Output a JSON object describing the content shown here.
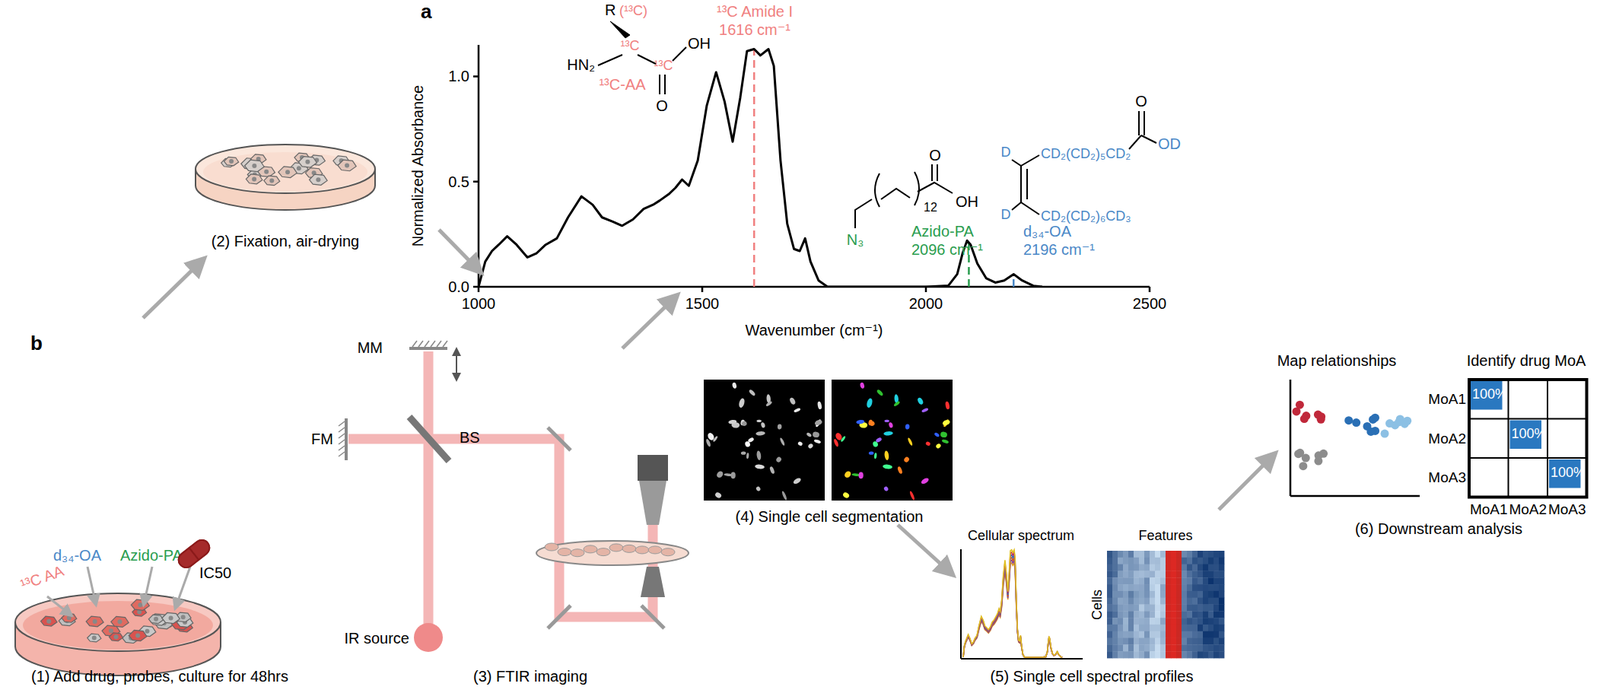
{
  "chart_data": {
    "type": "line",
    "panel_label": "a",
    "x_label": "Wavenumber (cm⁻¹)",
    "y_label": "Normalized Absorbance",
    "x": [
      1000,
      1005,
      1015,
      1030,
      1045,
      1064,
      1085,
      1109,
      1130,
      1150,
      1175,
      1200,
      1230,
      1255,
      1276,
      1300,
      1321,
      1345,
      1369,
      1390,
      1405,
      1425,
      1440,
      1455,
      1470,
      1490,
      1510,
      1531,
      1550,
      1568,
      1585,
      1600,
      1616,
      1630,
      1648,
      1660,
      1675,
      1690,
      1705,
      1718,
      1730,
      1742,
      1760,
      1780,
      1800,
      2000,
      2050,
      2070,
      2082,
      2092,
      2100,
      2115,
      2135,
      2155,
      2175,
      2196,
      2215,
      2240,
      2260
    ],
    "values": [
      0.0,
      0.04,
      0.12,
      0.17,
      0.2,
      0.24,
      0.2,
      0.14,
      0.16,
      0.2,
      0.23,
      0.33,
      0.43,
      0.39,
      0.33,
      0.31,
      0.29,
      0.32,
      0.37,
      0.39,
      0.41,
      0.44,
      0.47,
      0.51,
      0.48,
      0.6,
      0.86,
      1.02,
      0.88,
      0.69,
      0.9,
      1.12,
      1.13,
      1.1,
      1.13,
      1.05,
      0.6,
      0.3,
      0.18,
      0.17,
      0.23,
      0.12,
      0.03,
      0.0,
      0.0,
      0.0,
      0.005,
      0.06,
      0.16,
      0.22,
      0.2,
      0.11,
      0.04,
      0.02,
      0.03,
      0.06,
      0.03,
      0.005,
      0.0
    ],
    "color": "#000000",
    "xlim": [
      1000,
      2500
    ],
    "ylim": [
      0,
      1.15
    ],
    "xticks": [
      1000,
      1500,
      2000,
      2500
    ],
    "yticks": [
      {
        "value": 0,
        "label": "0.0"
      },
      {
        "value": 0.5,
        "label": "0.5"
      },
      {
        "value": 1,
        "label": "1.0"
      }
    ],
    "annotations": [
      {
        "x": 1616,
        "lines": [
          "¹³C Amide I",
          "1616 cm⁻¹"
        ],
        "color": "#f08080"
      },
      {
        "x": 2096,
        "lines": [
          "Azido-PA",
          "2096 cm⁻¹"
        ],
        "color": "#2a9d4f"
      },
      {
        "x": 2196,
        "lines": [
          "d₃₄-OA",
          "2196 cm⁻¹"
        ],
        "color": "#4a88c7"
      }
    ]
  },
  "structures": {
    "amino_acid": {
      "r": "R",
      "r_label": "(¹³C)",
      "c_alpha": "¹³C",
      "carboxyl_c": "¹³C",
      "oh": "OH",
      "o": "O",
      "amine": "HN₂",
      "name": "¹³C-AA"
    },
    "azido_pa": {
      "azide": "N₃",
      "repeat": "12",
      "o": "O",
      "oh": "OH"
    },
    "d34_oa": {
      "d_top": "D",
      "chain_top": "CD₂(CD₂)₅CD₂",
      "d_bottom": "D",
      "chain_bottom": "CD₂(CD₂)₆CD₃",
      "o": "O",
      "od": "OD"
    }
  },
  "workflow": {
    "panel_label": "b",
    "steps": [
      "(1) Add drug, probes, culture for 48hrs",
      "(2) Fixation, air-drying",
      "(3) FTIR imaging",
      "(4) Single cell segmentation",
      "(5) Single cell spectral profiles",
      "(6) Downstream analysis"
    ],
    "probes": [
      {
        "label": "¹³C AA",
        "color": "#f08080"
      },
      {
        "label": "d₃₄-OA",
        "color": "#4a88c7"
      },
      {
        "label": "Azido-PA",
        "color": "#2a9d4f"
      },
      {
        "label": "IC50",
        "color": "#000000"
      }
    ],
    "optics": [
      "MM",
      "FM",
      "BS",
      "IR source"
    ],
    "profiles": {
      "spectrum_title": "Cellular spectrum",
      "features_title": "Features",
      "features_axis": "Cells"
    },
    "map_title": "Map relationships",
    "moa": {
      "title": "Identify drug MoA",
      "rows": [
        "MoA1",
        "MoA2",
        "MoA3"
      ],
      "columns": [
        "MoA1",
        "MoA2",
        "MoA3"
      ],
      "cells": [
        [
          "100%",
          null,
          null
        ],
        [
          null,
          "100%",
          null
        ],
        [
          null,
          null,
          "100%"
        ]
      ]
    }
  }
}
